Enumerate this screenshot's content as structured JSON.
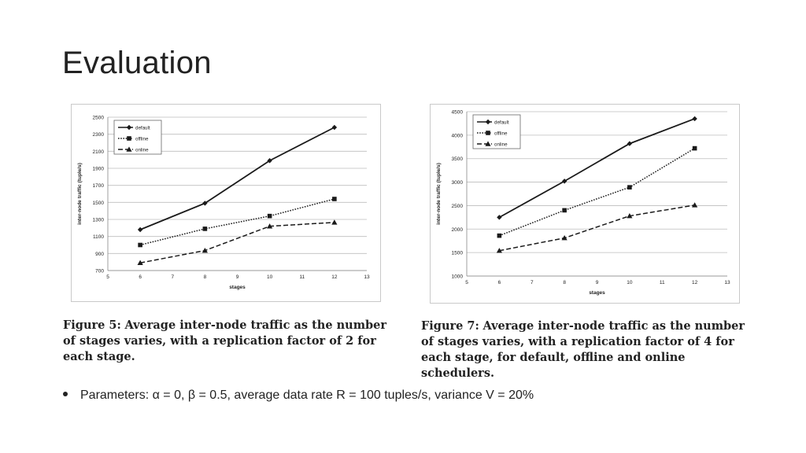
{
  "slide": {
    "title": "Evaluation",
    "bullet": "Parameters: α = 0, β = 0.5, average data rate R = 100 tuples/s, variance V = 20%"
  },
  "captions": [
    {
      "label": "Figure 5:",
      "text": "Average inter-node traffic as the number of stages varies, with a replication factor of 2 for each stage."
    },
    {
      "label": "Figure 7:",
      "text": "Average inter-node traffic as the number of stages varies, with a replication factor of 4 for each stage, for default, offline and online schedulers."
    }
  ],
  "colors": {
    "line": "#1a1a1a",
    "grid": "#bdbdbd",
    "text": "#222222"
  },
  "chart_data": [
    {
      "type": "line",
      "xlabel": "stages",
      "ylabel": "inter-node traffic (tuple/s)",
      "xlim": [
        5,
        13
      ],
      "ylim": [
        700,
        2500
      ],
      "xticks": [
        5,
        6,
        7,
        8,
        9,
        10,
        11,
        12,
        13
      ],
      "yticks": [
        700,
        900,
        1100,
        1300,
        1500,
        1700,
        1900,
        2100,
        2300,
        2500
      ],
      "grid": true,
      "legend_position": "top-left",
      "x": [
        6,
        8,
        10,
        12
      ],
      "series": [
        {
          "name": "default",
          "values": [
            1180,
            1490,
            1990,
            2380
          ],
          "marker": "diamond",
          "dash": "solid"
        },
        {
          "name": "offline",
          "values": [
            1000,
            1190,
            1340,
            1540
          ],
          "marker": "square",
          "dash": "dotted"
        },
        {
          "name": "online",
          "values": [
            790,
            935,
            1220,
            1265
          ],
          "marker": "triangle",
          "dash": "dashed"
        }
      ]
    },
    {
      "type": "line",
      "xlabel": "stages",
      "ylabel": "inter-node traffic (tuple/s)",
      "xlim": [
        5,
        13
      ],
      "ylim": [
        1000,
        4500
      ],
      "xticks": [
        5,
        6,
        7,
        8,
        9,
        10,
        11,
        12,
        13
      ],
      "yticks": [
        1000,
        1500,
        2000,
        2500,
        3000,
        3500,
        4000,
        4500
      ],
      "grid": true,
      "legend_position": "top-left",
      "x": [
        6,
        8,
        10,
        12
      ],
      "series": [
        {
          "name": "default",
          "values": [
            2250,
            3020,
            3820,
            4350
          ],
          "marker": "diamond",
          "dash": "solid"
        },
        {
          "name": "offline",
          "values": [
            1860,
            2400,
            2890,
            3720
          ],
          "marker": "square",
          "dash": "dotted"
        },
        {
          "name": "online",
          "values": [
            1540,
            1810,
            2280,
            2510
          ],
          "marker": "triangle",
          "dash": "dashed"
        }
      ]
    }
  ]
}
